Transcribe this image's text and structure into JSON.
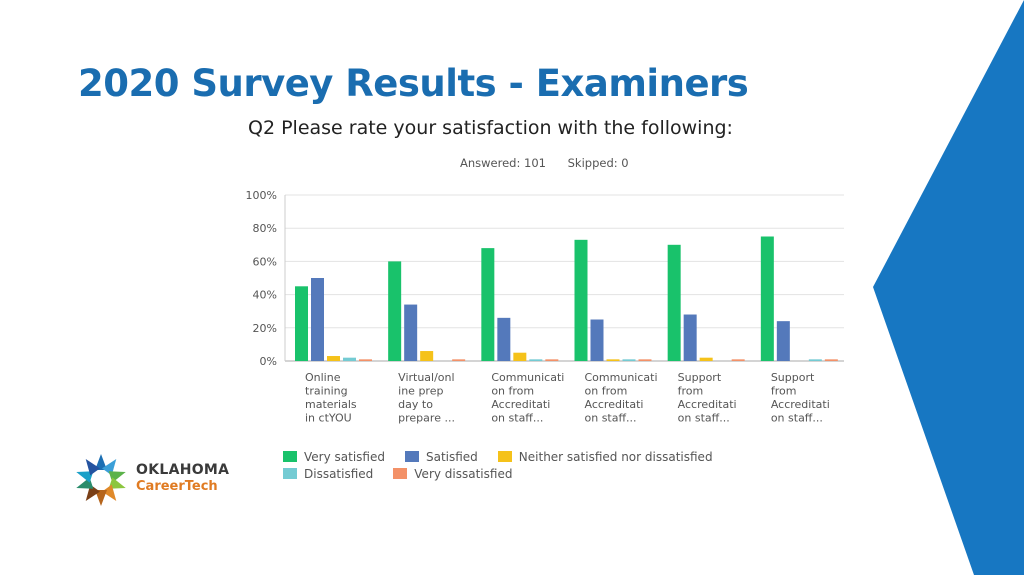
{
  "slide": {
    "title": "2020 Survey Results - Examiners"
  },
  "logo": {
    "line1": "OKLAHOMA",
    "line2": "CareerTech"
  },
  "chart_data": {
    "type": "bar",
    "title": "Q2 Please rate your satisfaction with the following:",
    "answered": "Answered: 101",
    "skipped": "Skipped: 0",
    "ylim": [
      0,
      100
    ],
    "yticks": [
      "0%",
      "20%",
      "40%",
      "60%",
      "80%",
      "100%"
    ],
    "grid": true,
    "legend_position": "bottom",
    "categories": [
      [
        "Online",
        "training",
        "materials",
        "in ctYOU"
      ],
      [
        "Virtual/onl",
        "ine prep",
        "day to",
        "prepare ..."
      ],
      [
        "Communicati",
        "on from",
        "Accreditati",
        "on staff..."
      ],
      [
        "Communicati",
        "on from",
        "Accreditati",
        "on staff..."
      ],
      [
        "Support",
        "from",
        "Accreditati",
        "on staff..."
      ],
      [
        "Support",
        "from",
        "Accreditati",
        "on staff..."
      ]
    ],
    "series": [
      {
        "name": "Very satisfied",
        "color": "#19c26b",
        "values": [
          45,
          60,
          68,
          73,
          70,
          75
        ]
      },
      {
        "name": "Satisfied",
        "color": "#5479bb",
        "values": [
          50,
          34,
          26,
          25,
          28,
          24
        ]
      },
      {
        "name": "Neither satisfied nor dissatisfied",
        "color": "#f5c21a",
        "values": [
          3,
          6,
          5,
          1,
          2,
          0
        ]
      },
      {
        "name": "Dissatisfied",
        "color": "#74cbd3",
        "values": [
          2,
          0,
          1,
          1,
          0,
          1
        ]
      },
      {
        "name": "Very dissatisfied",
        "color": "#f39168",
        "values": [
          1,
          1,
          1,
          1,
          1,
          1
        ]
      }
    ]
  }
}
